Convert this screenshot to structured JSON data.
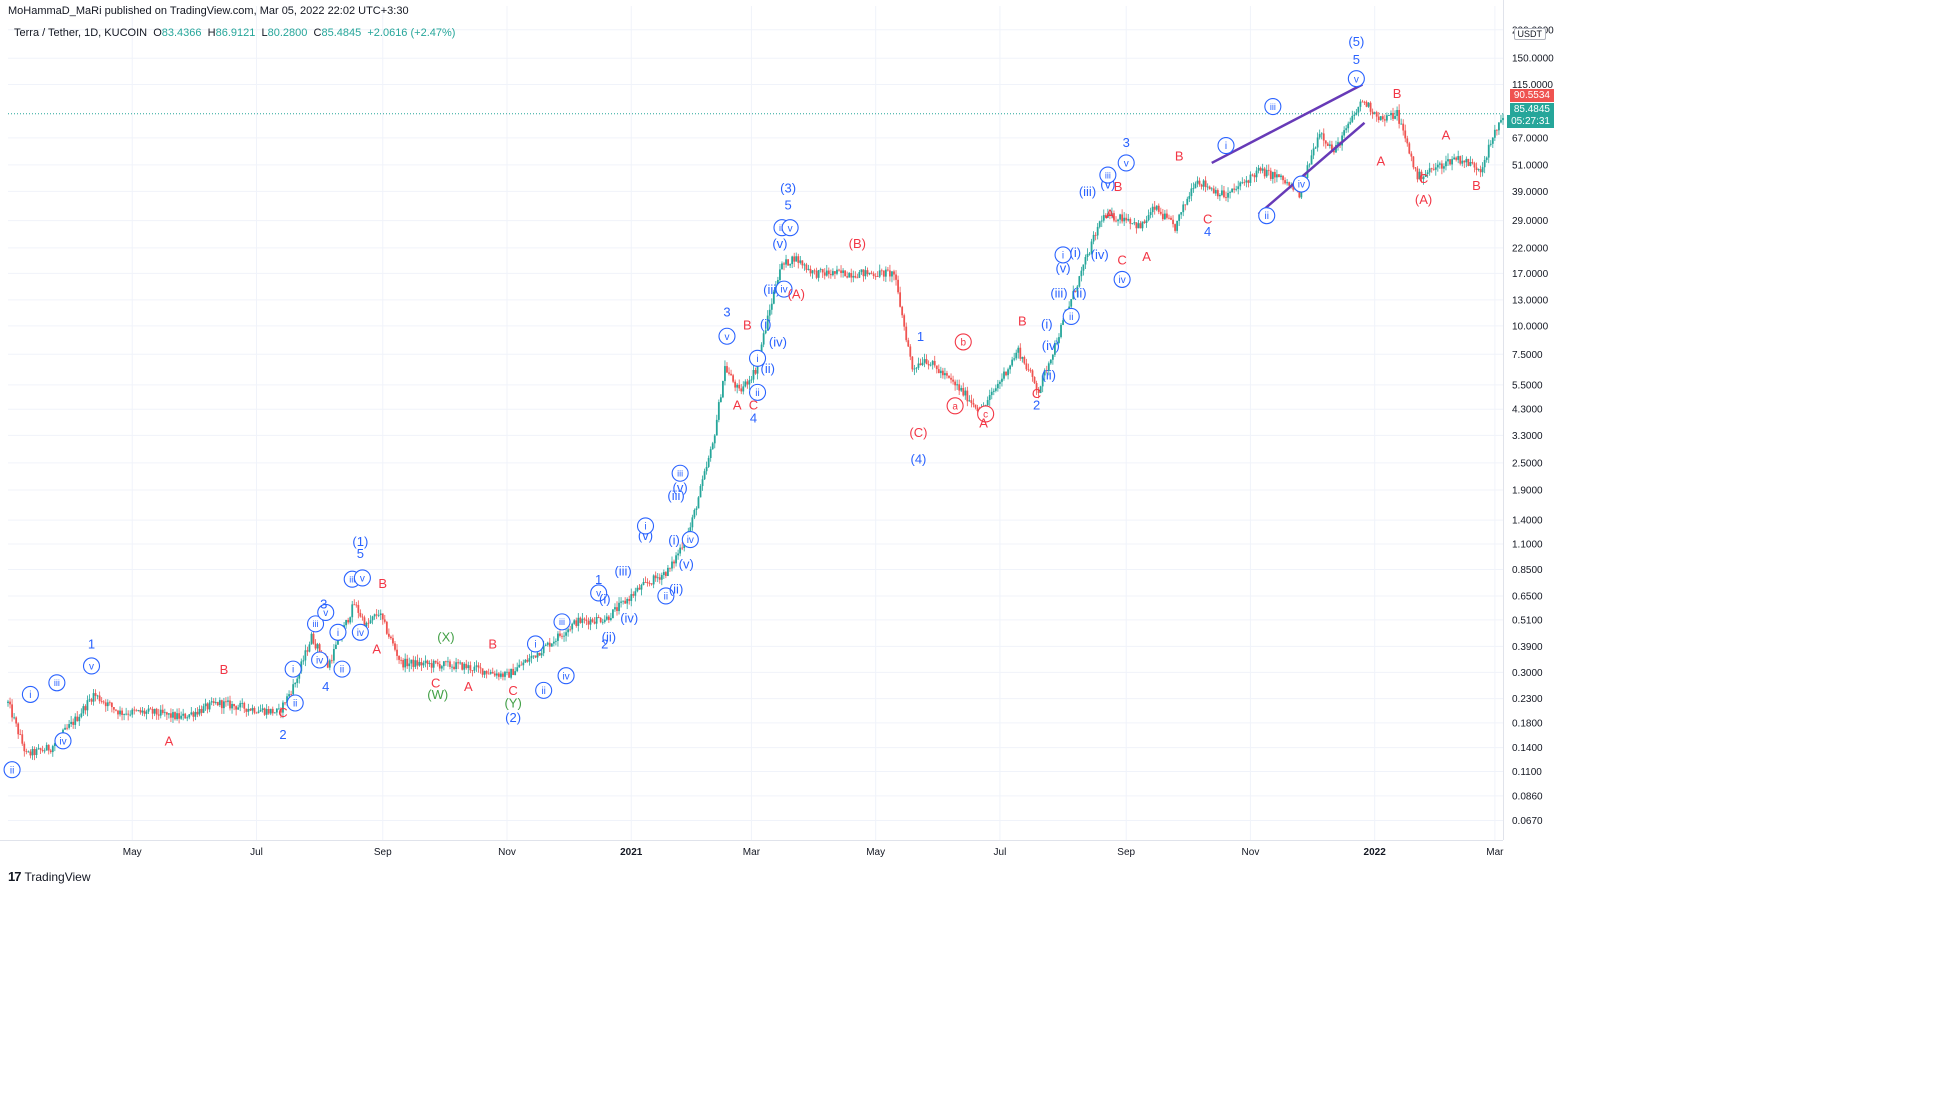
{
  "header": {
    "publisher": "MoHammaD_MaRi published on TradingView.com, Mar 05, 2022 22:02 UTC+3:30",
    "symbol": "Terra / Tether, 1D, KUCOIN",
    "open_label": "O",
    "open": "83.4366",
    "high_label": "H",
    "high": "86.9121",
    "low_label": "L",
    "low": "80.2800",
    "close_label": "C",
    "close": "85.4845",
    "change": "+2.0616 (+2.47%)"
  },
  "price_axis": {
    "unit": "USDT",
    "labels": [
      "200.0000",
      "150.0000",
      "115.0000",
      "67.0000",
      "51.0000",
      "39.0000",
      "29.0000",
      "22.0000",
      "17.0000",
      "13.0000",
      "10.0000",
      "7.5000",
      "5.5000",
      "4.3000",
      "3.3000",
      "2.5000",
      "1.9000",
      "1.4000",
      "1.1000",
      "0.8500",
      "0.6500",
      "0.5100",
      "0.3900",
      "0.3000",
      "0.2300",
      "0.1800",
      "0.1400",
      "0.1100",
      "0.0860",
      "0.0670"
    ],
    "last_high": "90.5534",
    "last_close": "85.4845",
    "countdown": "05:27:31"
  },
  "time_axis": {
    "labels": [
      "May",
      "Jul",
      "Sep",
      "Nov",
      "2021",
      "Mar",
      "May",
      "Jul",
      "Sep",
      "Nov",
      "2022",
      "Mar"
    ]
  },
  "footer": {
    "logo": "17",
    "brand": "TradingView"
  },
  "colors": {
    "up": "#26a69a",
    "down": "#ef5350",
    "wave_blue": "#2962ff",
    "wave_red": "#f23645",
    "wave_green": "#43a047",
    "wedge": "#673ab7"
  },
  "chart_data": {
    "type": "candlestick",
    "title": "Terra / Tether, 1D, KUCOIN",
    "scale": "log",
    "ylim": [
      0.055,
      230
    ],
    "x_start": "2020-03-01",
    "x_end": "2022-03-05",
    "path": [
      [
        "2020-03-01",
        0.22
      ],
      [
        "2020-03-10",
        0.13
      ],
      [
        "2020-03-22",
        0.14
      ],
      [
        "2020-04-04",
        0.19
      ],
      [
        "2020-04-12",
        0.24
      ],
      [
        "2020-04-25",
        0.2
      ],
      [
        "2020-05-10",
        0.2
      ],
      [
        "2020-05-25",
        0.19
      ],
      [
        "2020-06-12",
        0.22
      ],
      [
        "2020-06-25",
        0.21
      ],
      [
        "2020-07-12",
        0.2
      ],
      [
        "2020-07-20",
        0.27
      ],
      [
        "2020-07-28",
        0.43
      ],
      [
        "2020-08-05",
        0.32
      ],
      [
        "2020-08-18",
        0.6
      ],
      [
        "2020-08-24",
        0.48
      ],
      [
        "2020-08-30",
        0.55
      ],
      [
        "2020-09-10",
        0.33
      ],
      [
        "2020-10-10",
        0.32
      ],
      [
        "2020-11-01",
        0.29
      ],
      [
        "2020-11-20",
        0.39
      ],
      [
        "2020-12-05",
        0.5
      ],
      [
        "2020-12-20",
        0.52
      ],
      [
        "2021-01-05",
        0.7
      ],
      [
        "2021-01-20",
        0.85
      ],
      [
        "2021-01-30",
        1.3
      ],
      [
        "2021-02-10",
        3.0
      ],
      [
        "2021-02-16",
        6.6
      ],
      [
        "2021-02-23",
        5.1
      ],
      [
        "2021-03-03",
        6.4
      ],
      [
        "2021-03-15",
        18
      ],
      [
        "2021-03-22",
        20
      ],
      [
        "2021-04-01",
        17
      ],
      [
        "2021-04-15",
        17
      ],
      [
        "2021-05-10",
        17
      ],
      [
        "2021-05-19",
        6.5
      ],
      [
        "2021-05-25",
        7.2
      ],
      [
        "2021-06-10",
        5.4
      ],
      [
        "2021-06-22",
        4.2
      ],
      [
        "2021-07-10",
        7.8
      ],
      [
        "2021-07-20",
        5.2
      ],
      [
        "2021-08-05",
        13
      ],
      [
        "2021-08-20",
        30
      ],
      [
        "2021-09-01",
        30
      ],
      [
        "2021-09-08",
        27
      ],
      [
        "2021-09-15",
        33
      ],
      [
        "2021-09-25",
        27
      ],
      [
        "2021-10-05",
        44
      ],
      [
        "2021-10-20",
        37
      ],
      [
        "2021-11-05",
        48
      ],
      [
        "2021-11-15",
        45
      ],
      [
        "2021-11-25",
        38
      ],
      [
        "2021-12-05",
        72
      ],
      [
        "2021-12-12",
        58
      ],
      [
        "2021-12-26",
        98
      ],
      [
        "2022-01-05",
        80
      ],
      [
        "2022-01-12",
        86
      ],
      [
        "2022-01-22",
        45
      ],
      [
        "2022-02-10",
        55
      ],
      [
        "2022-02-22",
        49
      ],
      [
        "2022-03-05",
        85.48
      ]
    ]
  },
  "labels": [
    {
      "t": "2020-03-03",
      "v": 0.112,
      "text": "ii",
      "c": "blue",
      "circle": true
    },
    {
      "t": "2020-03-12",
      "v": 0.24,
      "text": "i",
      "c": "blue",
      "circle": true
    },
    {
      "t": "2020-03-25",
      "v": 0.27,
      "text": "iii",
      "c": "blue",
      "circle": true
    },
    {
      "t": "2020-03-28",
      "v": 0.15,
      "text": "iv",
      "c": "blue",
      "circle": true
    },
    {
      "t": "2020-04-11",
      "v": 0.32,
      "text": "v",
      "c": "blue",
      "circle": true
    },
    {
      "t": "2020-04-11",
      "v": 0.4,
      "text": "1",
      "c": "blue",
      "circle": false
    },
    {
      "t": "2020-05-19",
      "v": 0.15,
      "text": "A",
      "c": "red",
      "circle": false
    },
    {
      "t": "2020-06-15",
      "v": 0.31,
      "text": "B",
      "c": "red",
      "circle": false
    },
    {
      "t": "2020-07-14",
      "v": 0.2,
      "text": "C",
      "c": "red",
      "circle": false
    },
    {
      "t": "2020-07-14",
      "v": 0.16,
      "text": "2",
      "c": "blue",
      "circle": false
    },
    {
      "t": "2020-07-19",
      "v": 0.31,
      "text": "i",
      "c": "blue",
      "circle": true
    },
    {
      "t": "2020-07-20",
      "v": 0.22,
      "text": "ii",
      "c": "blue",
      "circle": true
    },
    {
      "t": "2020-07-30",
      "v": 0.49,
      "text": "iii",
      "c": "blue",
      "circle": true
    },
    {
      "t": "2020-08-01",
      "v": 0.34,
      "text": "iv",
      "c": "blue",
      "circle": true
    },
    {
      "t": "2020-08-04",
      "v": 0.55,
      "text": "v",
      "c": "blue",
      "circle": true
    },
    {
      "t": "2020-08-03",
      "v": 0.6,
      "text": "3",
      "c": "blue",
      "circle": false
    },
    {
      "t": "2020-08-04",
      "v": 0.26,
      "text": "4",
      "c": "blue",
      "circle": false
    },
    {
      "t": "2020-08-10",
      "v": 0.45,
      "text": "i",
      "c": "blue",
      "circle": true
    },
    {
      "t": "2020-08-12",
      "v": 0.31,
      "text": "ii",
      "c": "blue",
      "circle": true
    },
    {
      "t": "2020-08-17",
      "v": 0.77,
      "text": "iii",
      "c": "blue",
      "circle": true
    },
    {
      "t": "2020-08-21",
      "v": 0.45,
      "text": "iv",
      "c": "blue",
      "circle": true
    },
    {
      "t": "2020-08-22",
      "v": 0.78,
      "text": "v",
      "c": "blue",
      "circle": true
    },
    {
      "t": "2020-08-21",
      "v": 1.0,
      "text": "5",
      "c": "blue",
      "circle": false
    },
    {
      "t": "2020-08-21",
      "v": 1.13,
      "text": "(1)",
      "c": "blue",
      "circle": false
    },
    {
      "t": "2020-08-29",
      "v": 0.38,
      "text": "A",
      "c": "red",
      "circle": false
    },
    {
      "t": "2020-09-01",
      "v": 0.74,
      "text": "B",
      "c": "red",
      "circle": false
    },
    {
      "t": "2020-10-02",
      "v": 0.43,
      "text": "(X)",
      "c": "green",
      "circle": false
    },
    {
      "t": "2020-09-27",
      "v": 0.27,
      "text": "C",
      "c": "red",
      "circle": false
    },
    {
      "t": "2020-09-28",
      "v": 0.24,
      "text": "(W)",
      "c": "green",
      "circle": false
    },
    {
      "t": "2020-10-13",
      "v": 0.26,
      "text": "A",
      "c": "red",
      "circle": false
    },
    {
      "t": "2020-10-25",
      "v": 0.4,
      "text": "B",
      "c": "red",
      "circle": false
    },
    {
      "t": "2020-11-04",
      "v": 0.25,
      "text": "C",
      "c": "red",
      "circle": false
    },
    {
      "t": "2020-11-04",
      "v": 0.22,
      "text": "(Y)",
      "c": "green",
      "circle": false
    },
    {
      "t": "2020-11-04",
      "v": 0.19,
      "text": "(2)",
      "c": "blue",
      "circle": false
    },
    {
      "t": "2020-11-15",
      "v": 0.4,
      "text": "i",
      "c": "blue",
      "circle": true
    },
    {
      "t": "2020-11-19",
      "v": 0.25,
      "text": "ii",
      "c": "blue",
      "circle": true
    },
    {
      "t": "2020-11-28",
      "v": 0.5,
      "text": "iii",
      "c": "blue",
      "circle": true
    },
    {
      "t": "2020-11-30",
      "v": 0.29,
      "text": "iv",
      "c": "blue",
      "circle": true
    },
    {
      "t": "2020-12-16",
      "v": 0.67,
      "text": "v",
      "c": "blue",
      "circle": true
    },
    {
      "t": "2020-12-16",
      "v": 0.77,
      "text": "1",
      "c": "blue",
      "circle": false
    },
    {
      "t": "2020-12-19",
      "v": 0.4,
      "text": "2",
      "c": "blue",
      "circle": false
    },
    {
      "t": "2020-12-19",
      "v": 0.63,
      "text": "(i)",
      "c": "blue",
      "circle": false
    },
    {
      "t": "2020-12-21",
      "v": 0.43,
      "text": "(ii)",
      "c": "blue",
      "circle": false
    },
    {
      "t": "2020-12-28",
      "v": 0.84,
      "text": "(iii)",
      "c": "blue",
      "circle": false
    },
    {
      "t": "2020-12-31",
      "v": 0.52,
      "text": "(iv)",
      "c": "blue",
      "circle": false
    },
    {
      "t": "2021-01-08",
      "v": 1.2,
      "text": "(v)",
      "c": "blue",
      "circle": false
    },
    {
      "t": "2021-01-08",
      "v": 1.32,
      "text": "i",
      "c": "blue",
      "circle": true
    },
    {
      "t": "2021-01-18",
      "v": 0.65,
      "text": "ii",
      "c": "blue",
      "circle": true
    },
    {
      "t": "2021-01-22",
      "v": 1.15,
      "text": "(i)",
      "c": "blue",
      "circle": false
    },
    {
      "t": "2021-01-23",
      "v": 0.7,
      "text": "(ii)",
      "c": "blue",
      "circle": false
    },
    {
      "t": "2021-01-23",
      "v": 1.8,
      "text": "(iii)",
      "c": "blue",
      "circle": false
    },
    {
      "t": "2021-01-25",
      "v": 1.95,
      "text": "(v)",
      "c": "blue",
      "circle": false
    },
    {
      "t": "2021-01-25",
      "v": 2.25,
      "text": "iii",
      "c": "blue",
      "circle": true
    },
    {
      "t": "2021-01-28",
      "v": 0.9,
      "text": "(v)",
      "c": "blue",
      "circle": false
    },
    {
      "t": "2021-01-30",
      "v": 1.15,
      "text": "iv",
      "c": "blue",
      "circle": true
    },
    {
      "t": "2021-02-17",
      "v": 9.0,
      "text": "v",
      "c": "blue",
      "circle": true
    },
    {
      "t": "2021-02-17",
      "v": 11.5,
      "text": "3",
      "c": "blue",
      "circle": false
    },
    {
      "t": "2021-02-22",
      "v": 4.5,
      "text": "A",
      "c": "red",
      "circle": false
    },
    {
      "t": "2021-02-27",
      "v": 10.1,
      "text": "B",
      "c": "red",
      "circle": false
    },
    {
      "t": "2021-03-02",
      "v": 4.5,
      "text": "C",
      "c": "red",
      "circle": false
    },
    {
      "t": "2021-03-02",
      "v": 3.95,
      "text": "4",
      "c": "blue",
      "circle": false
    },
    {
      "t": "2021-03-04",
      "v": 7.2,
      "text": "i",
      "c": "blue",
      "circle": true
    },
    {
      "t": "2021-03-04",
      "v": 5.1,
      "text": "ii",
      "c": "blue",
      "circle": true
    },
    {
      "t": "2021-03-08",
      "v": 10.2,
      "text": "(i)",
      "c": "blue",
      "circle": false
    },
    {
      "t": "2021-03-09",
      "v": 6.5,
      "text": "(ii)",
      "c": "blue",
      "circle": false
    },
    {
      "t": "2021-03-11",
      "v": 14.5,
      "text": "(iii)",
      "c": "blue",
      "circle": false
    },
    {
      "t": "2021-03-14",
      "v": 8.5,
      "text": "(iv)",
      "c": "blue",
      "circle": false
    },
    {
      "t": "2021-03-17",
      "v": 14.5,
      "text": "iv",
      "c": "blue",
      "circle": true
    },
    {
      "t": "2021-03-15",
      "v": 23.0,
      "text": "(v)",
      "c": "blue",
      "circle": false
    },
    {
      "t": "2021-03-16",
      "v": 27.0,
      "text": "iii",
      "c": "blue",
      "circle": true
    },
    {
      "t": "2021-03-20",
      "v": 27.0,
      "text": "v",
      "c": "blue",
      "circle": true
    },
    {
      "t": "2021-03-19",
      "v": 34.0,
      "text": "5",
      "c": "blue",
      "circle": false
    },
    {
      "t": "2021-03-19",
      "v": 40.5,
      "text": "(3)",
      "c": "blue",
      "circle": false
    },
    {
      "t": "2021-03-23",
      "v": 13.8,
      "text": "(A)",
      "c": "red",
      "circle": false
    },
    {
      "t": "2021-04-22",
      "v": 23.0,
      "text": "(B)",
      "c": "red",
      "circle": false
    },
    {
      "t": "2021-05-23",
      "v": 9.0,
      "text": "1",
      "c": "blue",
      "circle": false
    },
    {
      "t": "2021-05-22",
      "v": 3.4,
      "text": "(C)",
      "c": "red",
      "circle": false
    },
    {
      "t": "2021-05-22",
      "v": 2.6,
      "text": "(4)",
      "c": "blue",
      "circle": false
    },
    {
      "t": "2021-06-09",
      "v": 4.45,
      "text": "a",
      "c": "red",
      "circle": true
    },
    {
      "t": "2021-06-13",
      "v": 8.5,
      "text": "b",
      "c": "red",
      "circle": true
    },
    {
      "t": "2021-06-24",
      "v": 4.1,
      "text": "c",
      "c": "red",
      "circle": true
    },
    {
      "t": "2021-06-23",
      "v": 3.75,
      "text": "A",
      "c": "red",
      "circle": false
    },
    {
      "t": "2021-07-12",
      "v": 10.5,
      "text": "B",
      "c": "red",
      "circle": false
    },
    {
      "t": "2021-07-19",
      "v": 5.05,
      "text": "C",
      "c": "red",
      "circle": false
    },
    {
      "t": "2021-07-19",
      "v": 4.5,
      "text": "2",
      "c": "blue",
      "circle": false
    },
    {
      "t": "2021-07-24",
      "v": 10.2,
      "text": "(i)",
      "c": "blue",
      "circle": false
    },
    {
      "t": "2021-07-25",
      "v": 6.1,
      "text": "(ii)",
      "c": "blue",
      "circle": false
    },
    {
      "t": "2021-07-26",
      "v": 8.2,
      "text": "(iv)",
      "c": "blue",
      "circle": false
    },
    {
      "t": "2021-07-30",
      "v": 14.0,
      "text": "(iii)",
      "c": "blue",
      "circle": false
    },
    {
      "t": "2021-08-01",
      "v": 18.0,
      "text": "(v)",
      "c": "blue",
      "circle": false
    },
    {
      "t": "2021-08-01",
      "v": 20.5,
      "text": "i",
      "c": "blue",
      "circle": true
    },
    {
      "t": "2021-08-05",
      "v": 11.0,
      "text": "ii",
      "c": "blue",
      "circle": true
    },
    {
      "t": "2021-08-07",
      "v": 21.0,
      "text": "(i)",
      "c": "blue",
      "circle": false
    },
    {
      "t": "2021-08-09",
      "v": 14.0,
      "text": "(ii)",
      "c": "blue",
      "circle": false
    },
    {
      "t": "2021-08-13",
      "v": 39.0,
      "text": "(iii)",
      "c": "blue",
      "circle": false
    },
    {
      "t": "2021-08-19",
      "v": 20.6,
      "text": "(iv)",
      "c": "blue",
      "circle": false
    },
    {
      "t": "2021-08-23",
      "v": 42.0,
      "text": "(v)",
      "c": "blue",
      "circle": false
    },
    {
      "t": "2021-08-23",
      "v": 46.0,
      "text": "iii",
      "c": "blue",
      "circle": true
    },
    {
      "t": "2021-08-24",
      "v": 31.0,
      "text": "A",
      "c": "red",
      "circle": false
    },
    {
      "t": "2021-08-28",
      "v": 41.0,
      "text": "B",
      "c": "red",
      "circle": false
    },
    {
      "t": "2021-08-30",
      "v": 19.5,
      "text": "C",
      "c": "red",
      "circle": false
    },
    {
      "t": "2021-08-30",
      "v": 16.0,
      "text": "iv",
      "c": "blue",
      "circle": true
    },
    {
      "t": "2021-09-01",
      "v": 52.0,
      "text": "v",
      "c": "blue",
      "circle": true
    },
    {
      "t": "2021-09-01",
      "v": 64.0,
      "text": "3",
      "c": "blue",
      "circle": false
    },
    {
      "t": "2021-09-11",
      "v": 20.2,
      "text": "A",
      "c": "red",
      "circle": false
    },
    {
      "t": "2021-09-27",
      "v": 56.0,
      "text": "B",
      "c": "red",
      "circle": false
    },
    {
      "t": "2021-10-11",
      "v": 29.5,
      "text": "C",
      "c": "red",
      "circle": false
    },
    {
      "t": "2021-10-11",
      "v": 26.0,
      "text": "4",
      "c": "blue",
      "circle": false
    },
    {
      "t": "2021-10-20",
      "v": 62.0,
      "text": "i",
      "c": "blue",
      "circle": true
    },
    {
      "t": "2021-11-09",
      "v": 30.5,
      "text": "ii",
      "c": "blue",
      "circle": true
    },
    {
      "t": "2021-11-12",
      "v": 92.0,
      "text": "iii",
      "c": "blue",
      "circle": true
    },
    {
      "t": "2021-11-26",
      "v": 42.0,
      "text": "iv",
      "c": "blue",
      "circle": true
    },
    {
      "t": "2021-12-23",
      "v": 122.0,
      "text": "v",
      "c": "blue",
      "circle": true
    },
    {
      "t": "2021-12-23",
      "v": 148.0,
      "text": "5",
      "c": "blue",
      "circle": false
    },
    {
      "t": "2021-12-23",
      "v": 178.0,
      "text": "(5)",
      "c": "blue",
      "circle": false
    },
    {
      "t": "2022-01-04",
      "v": 53.0,
      "text": "A",
      "c": "red",
      "circle": false
    },
    {
      "t": "2022-01-12",
      "v": 105.0,
      "text": "B",
      "c": "red",
      "circle": false
    },
    {
      "t": "2022-01-25",
      "v": 44.5,
      "text": "C",
      "c": "red",
      "circle": false
    },
    {
      "t": "2022-01-25",
      "v": 36.0,
      "text": "(A)",
      "c": "red",
      "circle": false
    },
    {
      "t": "2022-02-05",
      "v": 69.0,
      "text": "A",
      "c": "red",
      "circle": false
    },
    {
      "t": "2022-02-20",
      "v": 41.5,
      "text": "B",
      "c": "red",
      "circle": false
    }
  ],
  "wedge_lines": [
    [
      [
        "2021-10-13",
        52
      ],
      [
        "2021-12-26",
        115
      ]
    ],
    [
      [
        "2021-11-05",
        31
      ],
      [
        "2021-12-27",
        78
      ]
    ]
  ]
}
